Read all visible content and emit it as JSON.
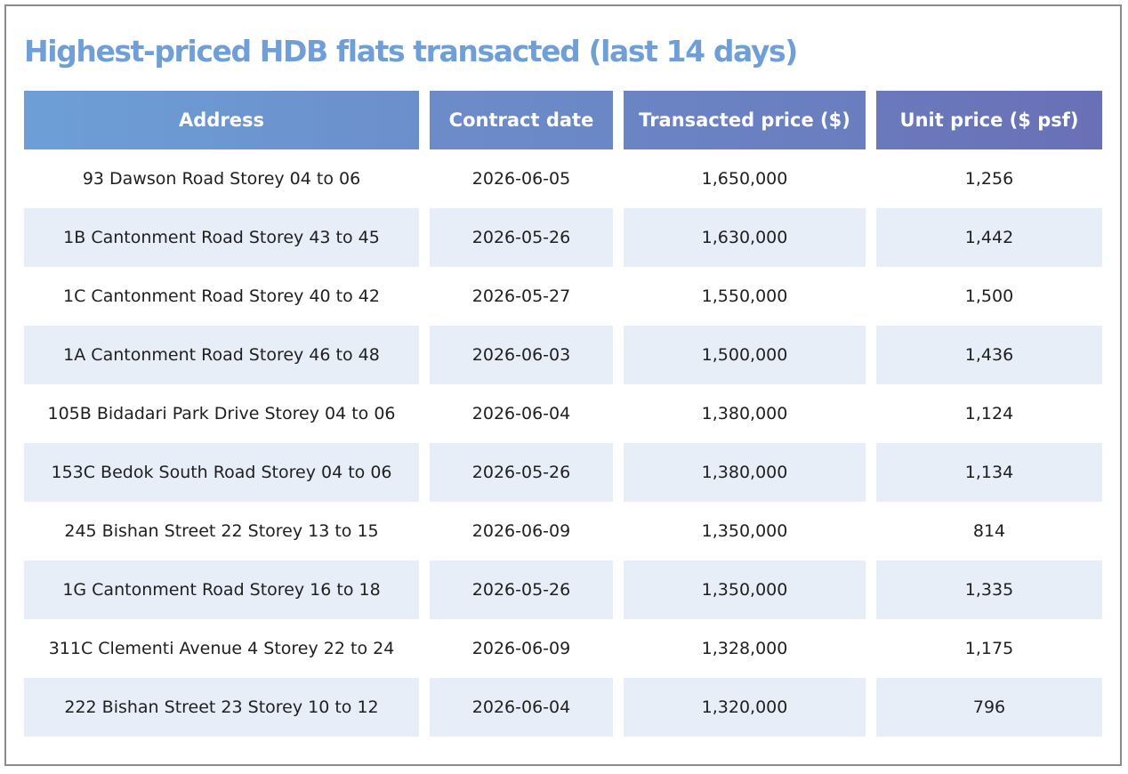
{
  "chart_data": {
    "type": "table",
    "title": "Highest-priced HDB flats transacted (last 14 days)",
    "columns": [
      "Address",
      "Contract date",
      "Transacted price ($)",
      "Unit price ($ psf)"
    ],
    "rows": [
      [
        "93 Dawson Road Storey 04 to 06",
        "2026-06-05",
        "1,650,000",
        "1,256"
      ],
      [
        "1B Cantonment Road Storey 43 to 45",
        "2026-05-26",
        "1,630,000",
        "1,442"
      ],
      [
        "1C Cantonment Road Storey 40 to 42",
        "2026-05-27",
        "1,550,000",
        "1,500"
      ],
      [
        "1A Cantonment Road Storey 46 to 48",
        "2026-06-03",
        "1,500,000",
        "1,436"
      ],
      [
        "105B Bidadari Park Drive Storey 04 to 06",
        "2026-06-04",
        "1,380,000",
        "1,124"
      ],
      [
        "153C Bedok South Road Storey 04 to 06",
        "2026-05-26",
        "1,380,000",
        "1,134"
      ],
      [
        "245 Bishan Street 22 Storey 13 to 15",
        "2026-06-09",
        "1,350,000",
        "814"
      ],
      [
        "1G Cantonment Road Storey 16 to 18",
        "2026-05-26",
        "1,350,000",
        "1,335"
      ],
      [
        "311C Clementi Avenue 4 Storey 22 to 24",
        "2026-06-09",
        "1,328,000",
        "1,175"
      ],
      [
        "222 Bishan Street 23 Storey 10 to 12",
        "2026-06-04",
        "1,320,000",
        "796"
      ]
    ]
  },
  "colors": {
    "title": "#6f9fd6",
    "header_gradient_start": "#6d9fd6",
    "header_gradient_end": "#6a70b6",
    "alt_row": "#e8eef7",
    "text": "#1f1f1f",
    "frame_border": "#8c8c8c"
  }
}
